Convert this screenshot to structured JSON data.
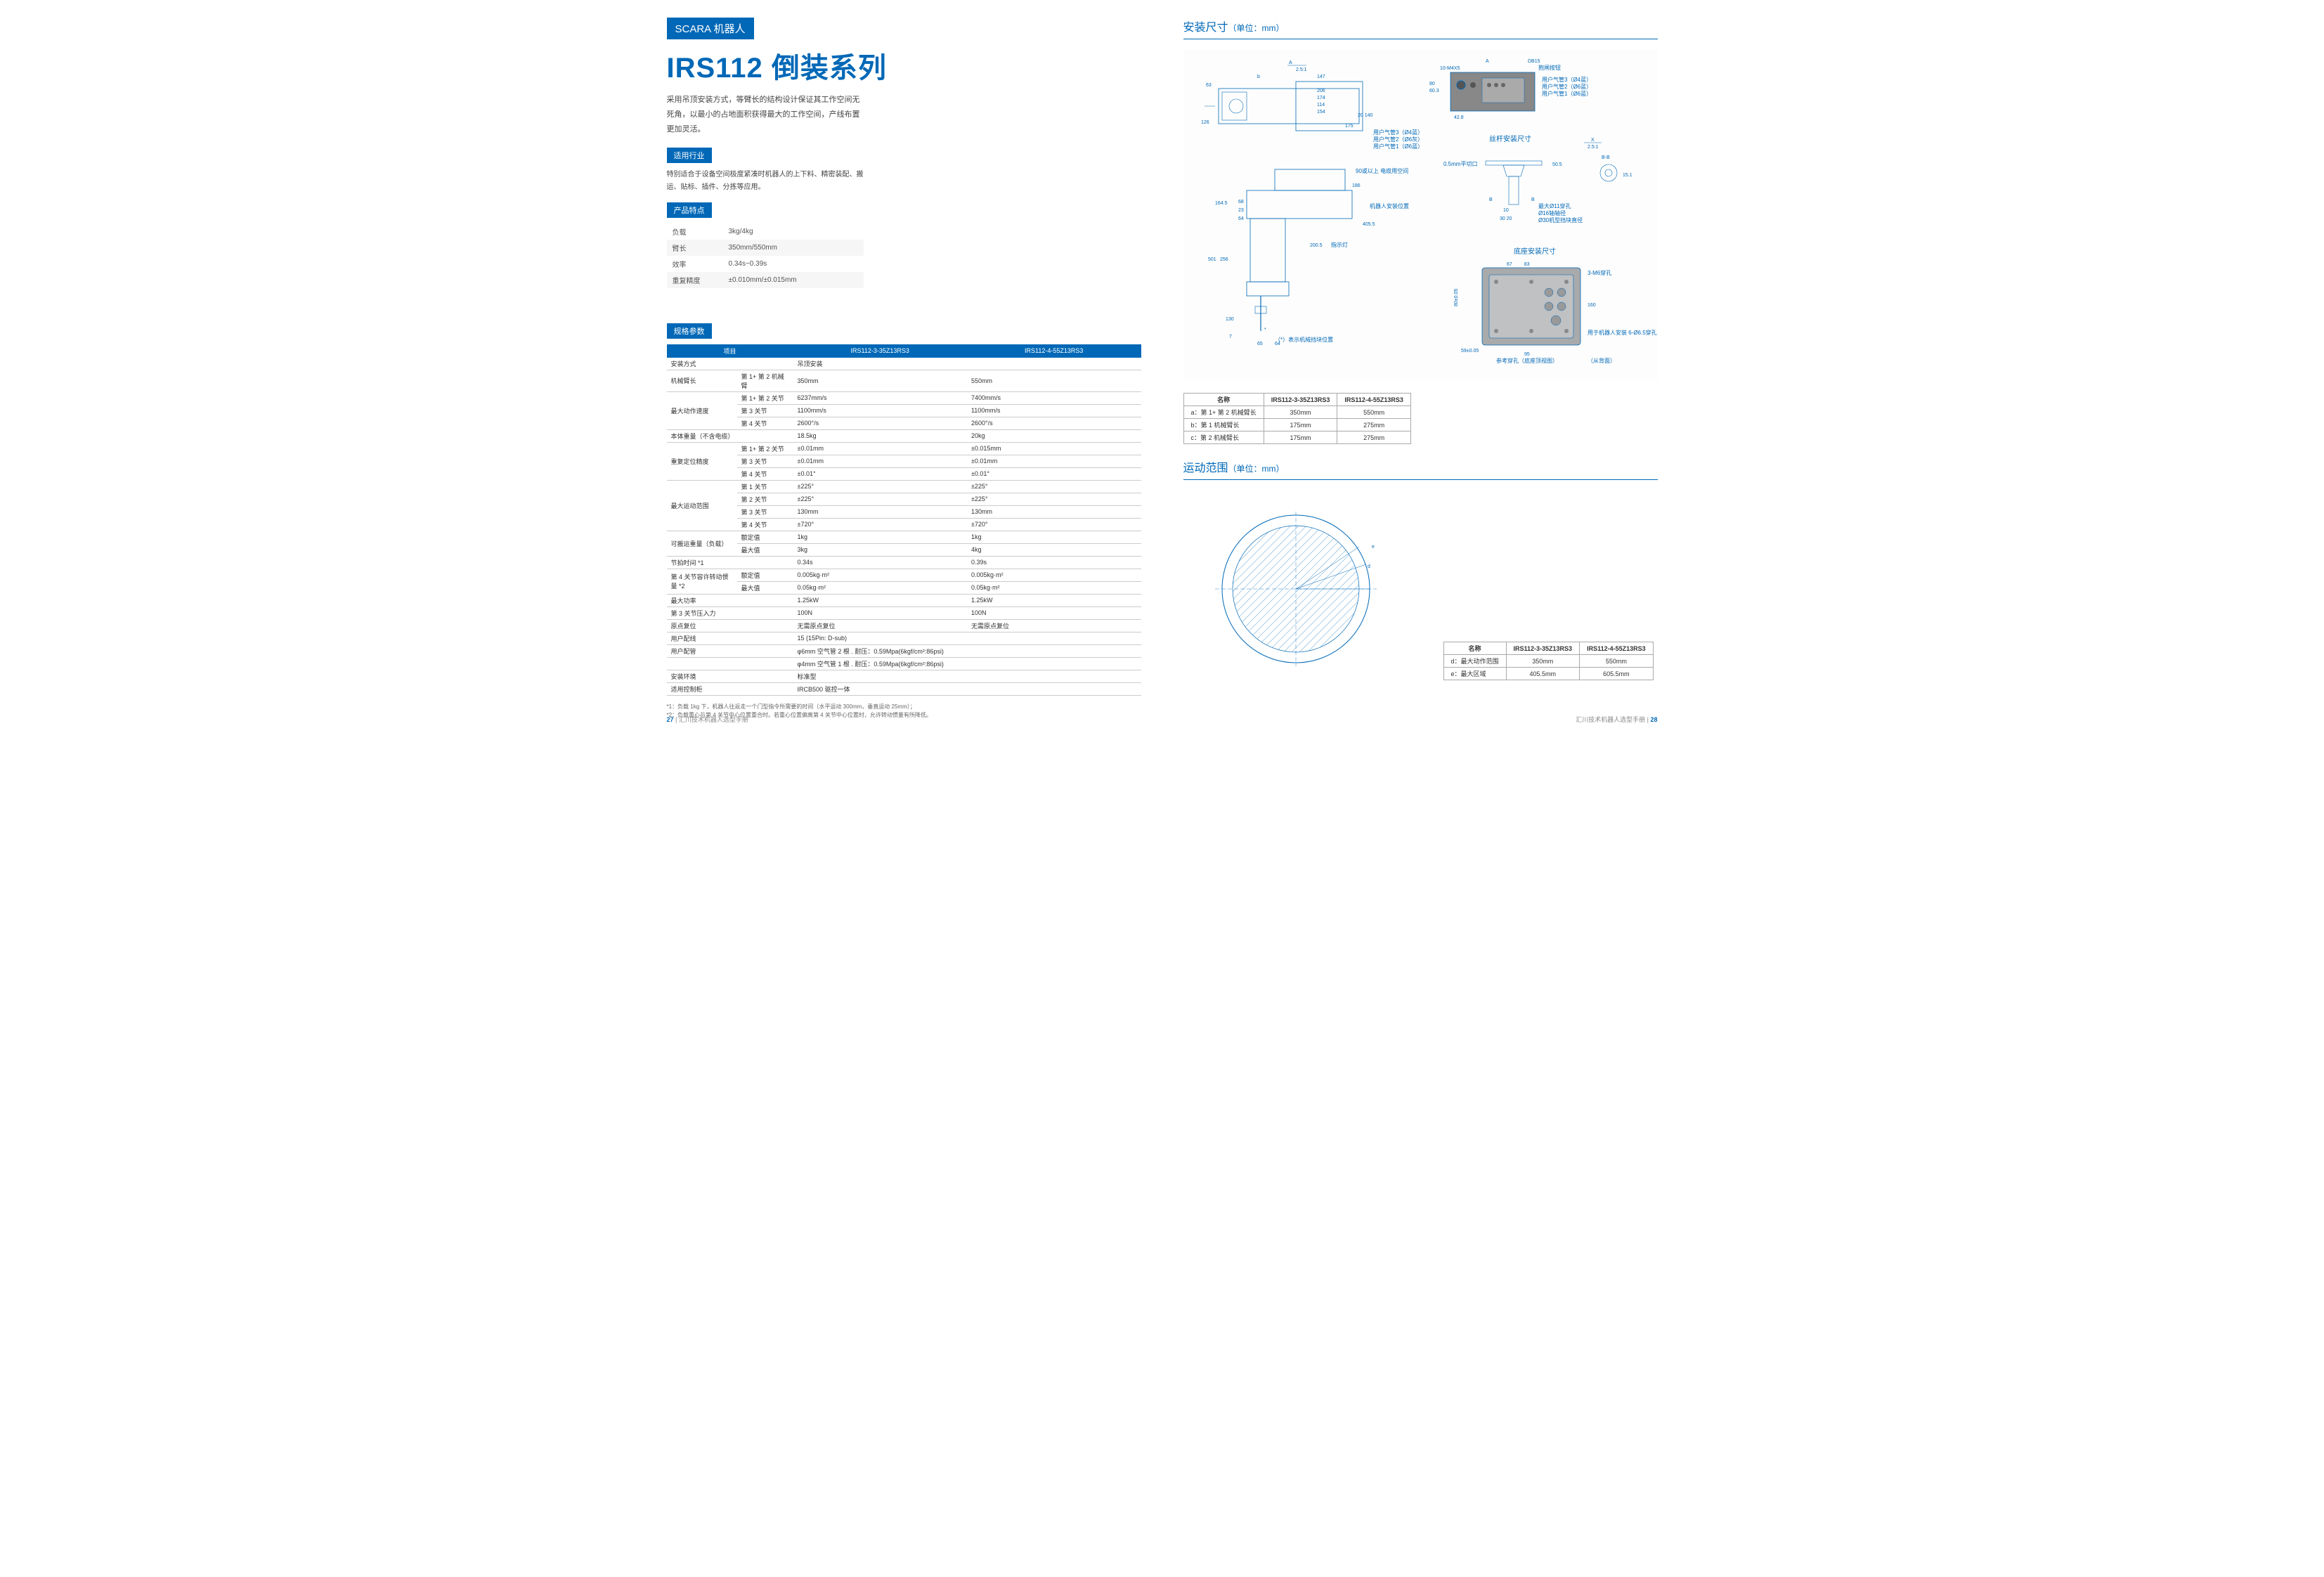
{
  "left": {
    "badge": "SCARA 机器人",
    "title": "IRS112 倒装系列",
    "intro": "采用吊顶安装方式，等臂长的结构设计保证其工作空间无死角，以最小的占地面积获得最大的工作空间，产线布置更加灵活。",
    "industry_label": "适用行业",
    "industry_text": "特别适合于设备空间极度紧凑时机器人的上下料、精密装配、搬运、贴标、插件、分拣等应用。",
    "features_label": "产品特点",
    "features": [
      {
        "k": "负载",
        "v": "3kg/4kg"
      },
      {
        "k": "臂长",
        "v": "350mm/550mm"
      },
      {
        "k": "效率",
        "v": "0.34s~0.39s"
      },
      {
        "k": "重复精度",
        "v": "±0.010mm/±0.015mm"
      }
    ],
    "spec_label": "规格参数",
    "spec_header": [
      "项目",
      "IRS112-3-35Z13RS3",
      "IRS112-4-55Z13RS3"
    ],
    "spec_rows": [
      {
        "a": "安装方式",
        "b": "",
        "c": "吊顶安装",
        "d": ""
      },
      {
        "a": "机械臂长",
        "b": "第 1+ 第 2 机械臂",
        "c": "350mm",
        "d": "550mm"
      },
      {
        "a": "",
        "b": "第 1+ 第 2 关节",
        "c": "6237mm/s",
        "d": "7400mm/s",
        "grp": "最大动作速度"
      },
      {
        "a": "",
        "b": "第 3 关节",
        "c": "1100mm/s",
        "d": "1100mm/s"
      },
      {
        "a": "",
        "b": "第 4 关节",
        "c": "2600°/s",
        "d": "2600°/s"
      },
      {
        "a": "本体重量（不含电缆）",
        "b": "",
        "c": "18.5kg",
        "d": "20kg"
      },
      {
        "a": "",
        "b": "第 1+ 第 2 关节",
        "c": "±0.01mm",
        "d": "±0.015mm",
        "grp": "重复定位精度"
      },
      {
        "a": "",
        "b": "第 3 关节",
        "c": "±0.01mm",
        "d": "±0.01mm"
      },
      {
        "a": "",
        "b": "第 4 关节",
        "c": "±0.01°",
        "d": "±0.01°"
      },
      {
        "a": "",
        "b": "第 1 关节",
        "c": "±225°",
        "d": "±225°",
        "grp": "最大运动范围"
      },
      {
        "a": "",
        "b": "第 2 关节",
        "c": "±225°",
        "d": "±225°"
      },
      {
        "a": "",
        "b": "第 3 关节",
        "c": "130mm",
        "d": "130mm"
      },
      {
        "a": "",
        "b": "第 4 关节",
        "c": "±720°",
        "d": "±720°"
      },
      {
        "a": "",
        "b": "额定值",
        "c": "1kg",
        "d": "1kg",
        "grp": "可搬运重量（负载）"
      },
      {
        "a": "",
        "b": "最大值",
        "c": "3kg",
        "d": "4kg"
      },
      {
        "a": "节拍时间 *1",
        "b": "",
        "c": "0.34s",
        "d": "0.39s"
      },
      {
        "a": "",
        "b": "额定值",
        "c": "0.005kg·m²",
        "d": "0.005kg·m²",
        "grp": "第 4 关节容许转动惯量 *2"
      },
      {
        "a": "",
        "b": "最大值",
        "c": "0.05kg·m²",
        "d": "0.05kg·m²"
      },
      {
        "a": "最大功率",
        "b": "",
        "c": "1.25kW",
        "d": "1.25kW"
      },
      {
        "a": "第 3 关节压入力",
        "b": "",
        "c": "100N",
        "d": "100N"
      },
      {
        "a": "原点复位",
        "b": "",
        "c": "无需原点复位",
        "d": "无需原点复位"
      },
      {
        "a": "用户配线",
        "b": "",
        "c": "15 (15Pin: D-sub)",
        "d": ""
      },
      {
        "a": "用户配管",
        "b": "",
        "c": "φ6mm 空气管 2 根 . 耐压：0.59Mpa(6kgf/cm²:86psi)",
        "d": ""
      },
      {
        "a": "",
        "b": "",
        "c": "φ4mm 空气管 1 根 . 耐压：0.59Mpa(6kgf/cm²:86psi)",
        "d": ""
      },
      {
        "a": "安装环境",
        "b": "",
        "c": "标准型",
        "d": ""
      },
      {
        "a": "适用控制柜",
        "b": "",
        "c": "IRCB500 驱控一体",
        "d": ""
      }
    ],
    "footnote1": "*1：负载 1kg 下，机器人往返走一个门型指令所需要的时间（水平运动 300mm，垂直运动 25mm）；",
    "footnote2": "*2：负载重心与第 4 关节中心位置重合时。若重心位置偏离第 4 关节中心位置时，允许转动惯量有所降低。",
    "page_num": "27",
    "page_book": "汇川技术机器人选型手册"
  },
  "right": {
    "dims_title": "安装尺寸",
    "dims_unit": "（单位：mm）",
    "dims_sub1": "丝杆安装尺寸",
    "dims_sub2": "底座安装尺寸",
    "dims_table_header": [
      "名称",
      "IRS112-3-35Z13RS3",
      "IRS112-4-55Z13RS3"
    ],
    "dims_table_rows": [
      {
        "a": "a：第 1+ 第 2 机械臂长",
        "b": "350mm",
        "c": "550mm"
      },
      {
        "a": "b：第 1 机械臂长",
        "b": "175mm",
        "c": "275mm"
      },
      {
        "a": "c：第 2 机械臂长",
        "b": "175mm",
        "c": "275mm"
      }
    ],
    "motion_title": "运动范围",
    "motion_unit": "（单位：mm）",
    "motion_table_header": [
      "名称",
      "IRS112-3-35Z13RS3",
      "IRS112-4-55Z13RS3"
    ],
    "motion_table_rows": [
      {
        "a": "d：最大动作范围",
        "b": "350mm",
        "c": "550mm"
      },
      {
        "a": "e：最大区域",
        "b": "405.5mm",
        "c": "605.5mm"
      }
    ],
    "annotations": {
      "star_note": "（*）表示机械挡块位置",
      "cable_note": "90或以上 电缆用空间",
      "robot_pos": "机器人安装位置",
      "light": "指示灯",
      "pipe1": "用户气管3（Ø4蓝）",
      "pipe2": "用户气管2（Ø6灰）",
      "pipe3": "用户气管1（Ø6蓝）",
      "pipe4": "用户气管3（Ø4蓝）",
      "pipe5": "用户气管2（Ø6蓝）",
      "pipe6": "用户气管1（Ø6蓝）",
      "db15": "DB15 抱闸按钮",
      "cut": "0.5mm平切口",
      "max_d": "最大Ø11穿孔",
      "shaft": "Ø16轴轴径",
      "block": "Ø30机型挡块直径",
      "mount_hole": "用于机器人安装 6-Ø6.5穿孔 Ø11沉孔深6.5",
      "ref_hole": "参考穿孔（底座顶视图）",
      "back": "（从背面）",
      "m6": "3-M6穿孔"
    },
    "dim_values": [
      "63",
      "147",
      "206",
      "174",
      "114",
      "154",
      "175",
      "126",
      "20",
      "140",
      "164.5",
      "68",
      "23",
      "64",
      "501",
      "256",
      "130",
      "7",
      "65",
      "64",
      "200.5",
      "405.5",
      "186",
      "80",
      "60.3",
      "42.8",
      "10-M4X5",
      "50.5",
      "15.1",
      "10",
      "30",
      "20",
      "59±0.05",
      "80±0.05",
      "67",
      "83",
      "95",
      "160"
    ],
    "page_num": "28",
    "page_book": "汇川技术机器人选型手册"
  },
  "colors": {
    "brand": "#0068b7",
    "text": "#333333",
    "border": "#cccccc"
  }
}
